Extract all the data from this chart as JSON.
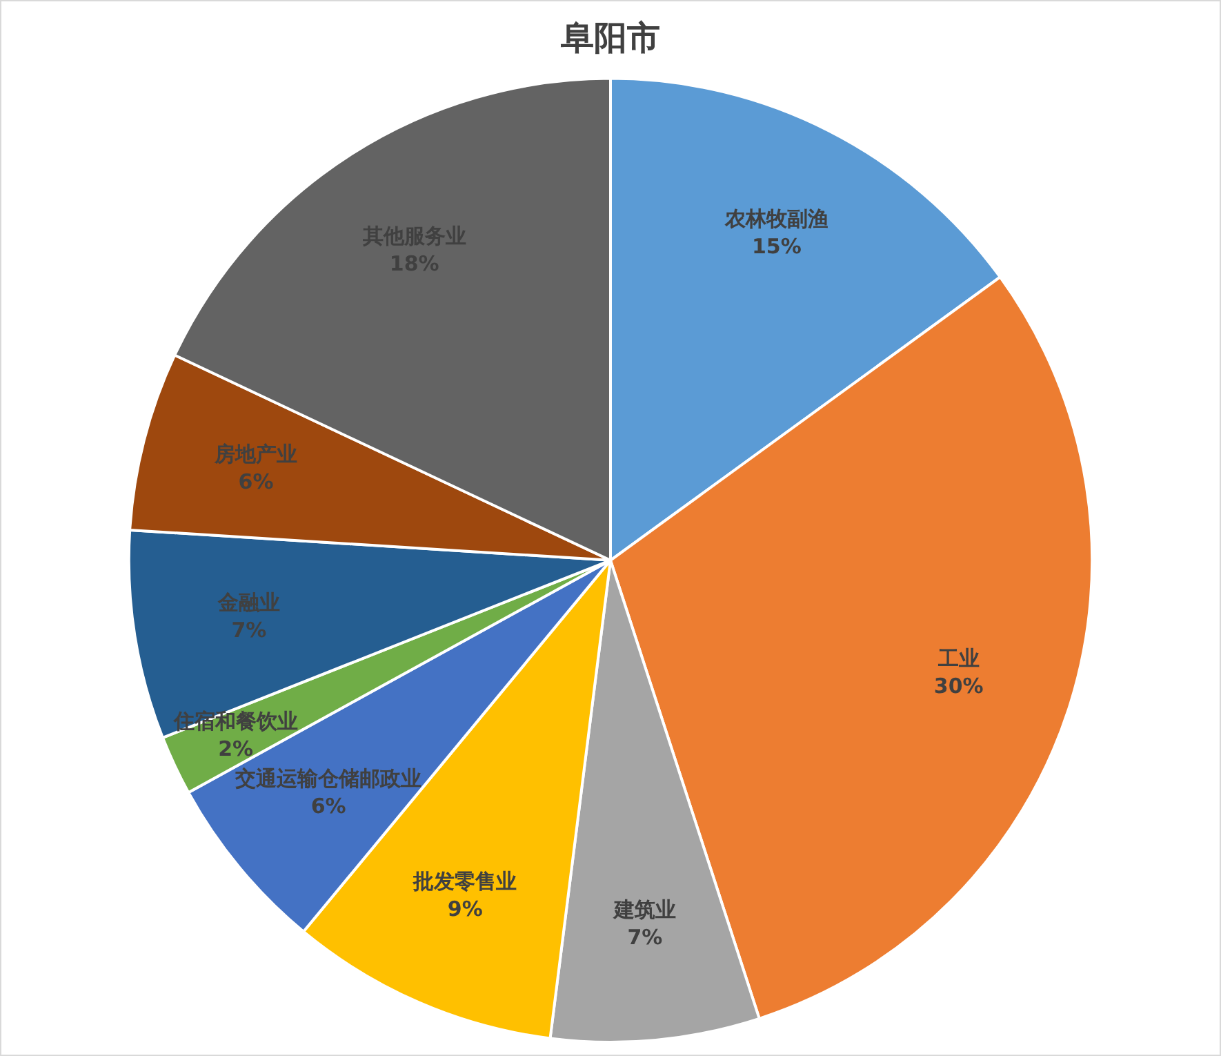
{
  "chart_data": {
    "type": "pie",
    "title": "阜阳市",
    "categories": [
      "农林牧副渔",
      "工业",
      "建筑业",
      "批发零售业",
      "交通运输仓储邮政业",
      "住宿和餐饮业",
      "金融业",
      "房地产业",
      "其他服务业"
    ],
    "values": [
      15,
      30,
      7,
      9,
      6,
      2,
      7,
      6,
      18
    ],
    "value_labels": [
      "15%",
      "30%",
      "7%",
      "9%",
      "6%",
      "2%",
      "7%",
      "6%",
      "18%"
    ],
    "colors": [
      "#5b9bd5",
      "#ed7d31",
      "#a5a5a5",
      "#ffc000",
      "#4472c4",
      "#70ad47",
      "#255e91",
      "#9e480e",
      "#636363"
    ],
    "legend": false
  }
}
